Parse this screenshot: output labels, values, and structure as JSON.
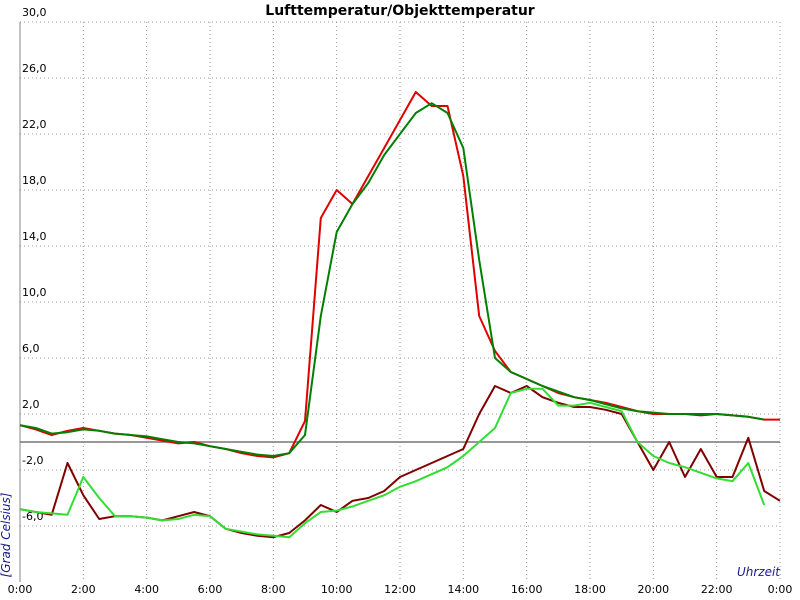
{
  "chart_data": {
    "type": "line",
    "title": "Lufttemperatur/Objekttemperatur",
    "y_label": "[Grad Celsius]",
    "x_label": "Uhrzeit",
    "grid": true,
    "xlim": [
      0,
      24
    ],
    "ylim": [
      -10,
      30
    ],
    "xticks": [
      {
        "value": 0,
        "label": "0:00"
      },
      {
        "value": 2,
        "label": "2:00"
      },
      {
        "value": 4,
        "label": "4:00"
      },
      {
        "value": 6,
        "label": "6:00"
      },
      {
        "value": 8,
        "label": "8:00"
      },
      {
        "value": 10,
        "label": "10:00"
      },
      {
        "value": 12,
        "label": "12:00"
      },
      {
        "value": 14,
        "label": "14:00"
      },
      {
        "value": 16,
        "label": "16:00"
      },
      {
        "value": 18,
        "label": "18:00"
      },
      {
        "value": 20,
        "label": "20:00"
      },
      {
        "value": 22,
        "label": "22:00"
      },
      {
        "value": 24,
        "label": "0:00"
      }
    ],
    "yticks": [
      {
        "value": -6,
        "label": "-6,0"
      },
      {
        "value": -2,
        "label": "-2,0"
      },
      {
        "value": 2,
        "label": "2,0"
      },
      {
        "value": 6,
        "label": "6,0"
      },
      {
        "value": 10,
        "label": "10,0"
      },
      {
        "value": 14,
        "label": "14,0"
      },
      {
        "value": 18,
        "label": "18,0"
      },
      {
        "value": 22,
        "label": "22,0"
      },
      {
        "value": 26,
        "label": "26,0"
      },
      {
        "value": 30,
        "label": "30,0"
      }
    ],
    "x": [
      0,
      0.5,
      1,
      1.5,
      2,
      2.5,
      3,
      3.5,
      4,
      4.5,
      5,
      5.5,
      6,
      6.5,
      7,
      7.5,
      8,
      8.5,
      9,
      9.5,
      10,
      10.5,
      11,
      11.5,
      12,
      12.5,
      13,
      13.5,
      14,
      14.5,
      15,
      15.5,
      16,
      16.5,
      17,
      17.5,
      18,
      18.5,
      19,
      19.5,
      20,
      20.5,
      21,
      21.5,
      22,
      22.5,
      23,
      23.5,
      24
    ],
    "series": [
      {
        "color": "#e00000",
        "values": [
          1.2,
          0.9,
          0.5,
          0.8,
          1.0,
          0.8,
          0.6,
          0.5,
          0.3,
          0.1,
          -0.1,
          0,
          -0.3,
          -0.5,
          -0.8,
          -1.0,
          -1.1,
          -0.8,
          1.5,
          16,
          18,
          17,
          19,
          21,
          23,
          25,
          24,
          24,
          19,
          9,
          6.5,
          5,
          4.5,
          4,
          3.5,
          3.2,
          3,
          2.8,
          2.5,
          2.2,
          2.0,
          2.0,
          2.0,
          1.9,
          2.0,
          1.9,
          1.8,
          1.6,
          1.6
        ]
      },
      {
        "color": "#008000",
        "values": [
          1.2,
          1.0,
          0.6,
          0.7,
          0.9,
          0.8,
          0.6,
          0.5,
          0.4,
          0.2,
          0,
          -0.1,
          -0.3,
          -0.5,
          -0.7,
          -0.9,
          -1.0,
          -0.8,
          0.5,
          9,
          15,
          17,
          18.5,
          20.5,
          22,
          23.5,
          24.2,
          23.5,
          21,
          13,
          6,
          5,
          4.5,
          4,
          3.6,
          3.2,
          3,
          2.7,
          2.4,
          2.2,
          2.1,
          2.0,
          2.0,
          2.0,
          2.0,
          1.9,
          1.8,
          1.6,
          null
        ]
      },
      {
        "color": "#800000",
        "values": [
          -4.8,
          -5.0,
          -5.2,
          -1.5,
          -3.8,
          -5.5,
          -5.3,
          -5.3,
          -5.4,
          -5.6,
          -5.3,
          -5.0,
          -5.3,
          -6.2,
          -6.5,
          -6.7,
          -6.8,
          -6.5,
          -5.6,
          -4.5,
          -5,
          -4.2,
          -4,
          -3.5,
          -2.5,
          -2,
          -1.5,
          -1,
          -0.5,
          2,
          4,
          3.5,
          4,
          3.2,
          2.8,
          2.5,
          2.5,
          2.3,
          2,
          0,
          -2,
          0,
          -2.5,
          -0.5,
          -2.5,
          -2.5,
          0.3,
          -3.5,
          -4.2
        ]
      },
      {
        "color": "#33dd33",
        "values": [
          -4.8,
          -5.0,
          -5.1,
          -5.2,
          -2.5,
          -4,
          -5.3,
          -5.3,
          -5.4,
          -5.6,
          -5.5,
          -5.2,
          -5.3,
          -6.2,
          -6.4,
          -6.6,
          -6.7,
          -6.8,
          -5.8,
          -5,
          -4.9,
          -4.6,
          -4.2,
          -3.8,
          -3.2,
          -2.8,
          -2.3,
          -1.8,
          -1,
          0,
          1,
          3.5,
          3.8,
          3.8,
          2.6,
          2.6,
          2.8,
          2.5,
          2.2,
          0,
          -1,
          -1.5,
          -1.8,
          -2.2,
          -2.6,
          -2.8,
          -1.5,
          -4.5,
          null
        ]
      }
    ]
  }
}
